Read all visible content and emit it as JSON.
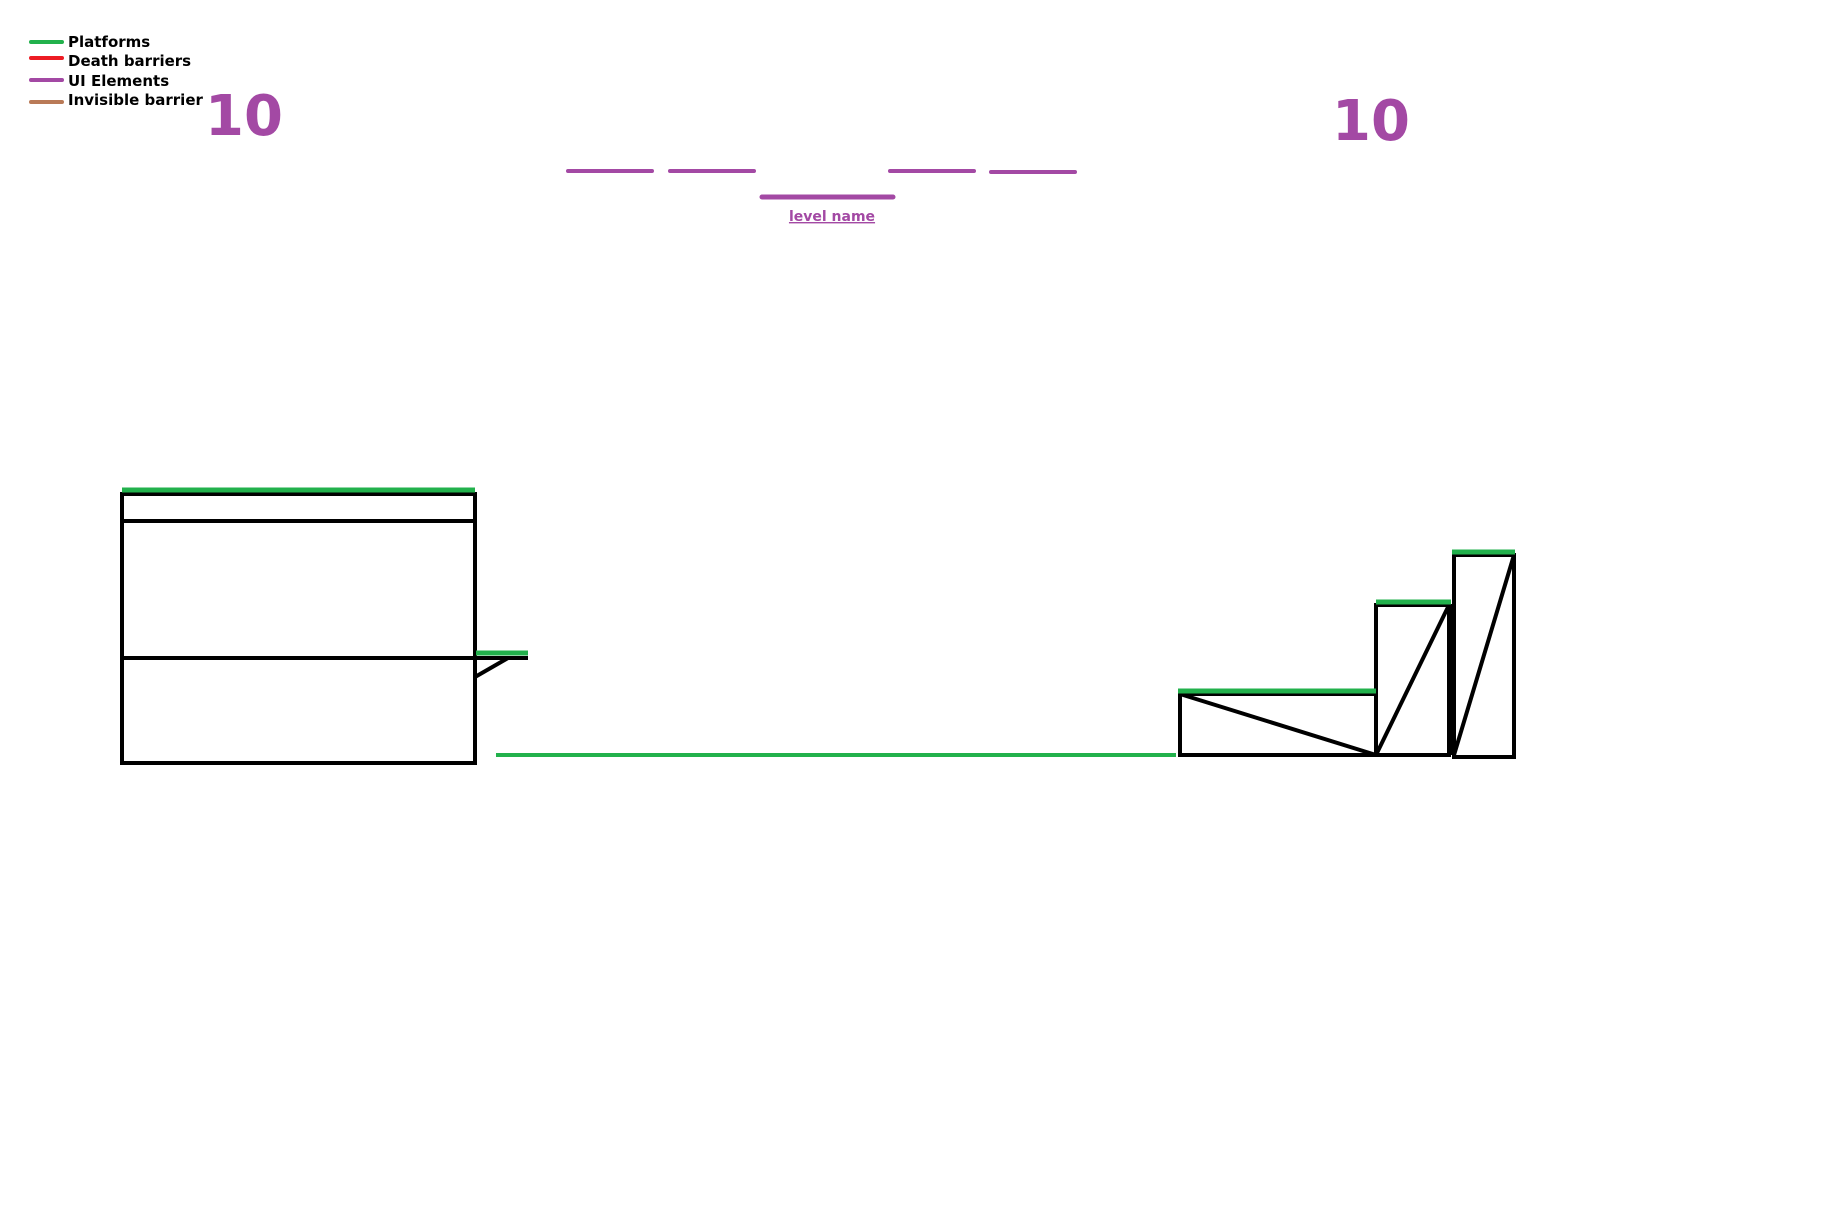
{
  "colors": {
    "platform": "#22b14c",
    "death_barrier": "#ed1c24",
    "ui_element": "#a349a4",
    "invisible_barrier": "#b97a57",
    "structure": "#000000",
    "background": "#ffffff"
  },
  "legend": {
    "items": [
      {
        "label": "Platforms",
        "color": "#22b14c"
      },
      {
        "label": "Death barriers",
        "color": "#ed1c24"
      },
      {
        "label": "UI Elements",
        "color": "#a349a4"
      },
      {
        "label": "Invisible barrier",
        "color": "#b97a57"
      }
    ]
  },
  "hud": {
    "score_left": "10",
    "score_right": "10",
    "level_name": "level name"
  }
}
